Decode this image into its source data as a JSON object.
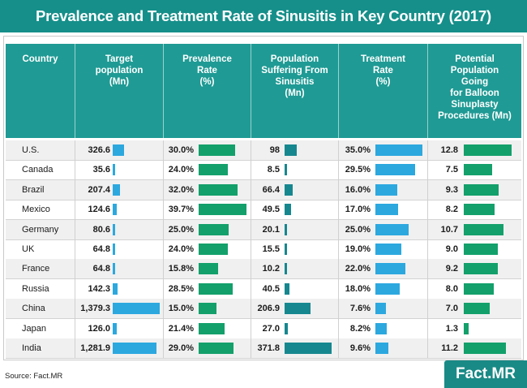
{
  "title": "Prevalence and Treatment Rate of Sinusitis in Key Country (2017)",
  "source": "Source: Fact.MR",
  "logo": "Fact.MR",
  "colors": {
    "header_bg": "#1f9a94",
    "title_bg": "#168f8a",
    "bar_blue": "#2ca8df",
    "bar_green": "#13a06b",
    "bar_teal": "#16878f"
  },
  "headers": {
    "country": "Country",
    "target": "Target\npopulation\n(Mn)",
    "prevalence": "Prevalence\nRate\n(%)",
    "suffering": "Population\nSuffering From\nSinusitis\n(Mn)",
    "treatment": "Treatment\nRate\n(%)",
    "balloon": "Potential\nPopulation\nGoing\nfor Balloon\nSinuplasty\nProcedures (Mn)"
  },
  "chart_data": {
    "type": "table",
    "columns": [
      "Country",
      "Target population (Mn)",
      "Prevalence Rate (%)",
      "Population Suffering From Sinusitis (Mn)",
      "Treatment Rate (%)",
      "Potential Population Going for Balloon Sinuplasty Procedures (Mn)"
    ],
    "rows": [
      {
        "country": "U.S.",
        "target": "326.6",
        "prevalence": "30.0%",
        "suffering": "98",
        "treatment": "35.0%",
        "balloon": "12.8"
      },
      {
        "country": "Canada",
        "target": "35.6",
        "prevalence": "24.0%",
        "suffering": "8.5",
        "treatment": "29.5%",
        "balloon": "7.5"
      },
      {
        "country": "Brazil",
        "target": "207.4",
        "prevalence": "32.0%",
        "suffering": "66.4",
        "treatment": "16.0%",
        "balloon": "9.3"
      },
      {
        "country": "Mexico",
        "target": "124.6",
        "prevalence": "39.7%",
        "suffering": "49.5",
        "treatment": "17.0%",
        "balloon": "8.2"
      },
      {
        "country": "Germany",
        "target": "80.6",
        "prevalence": "25.0%",
        "suffering": "20.1",
        "treatment": "25.0%",
        "balloon": "10.7"
      },
      {
        "country": "UK",
        "target": "64.8",
        "prevalence": "24.0%",
        "suffering": "15.5",
        "treatment": "19.0%",
        "balloon": "9.0"
      },
      {
        "country": "France",
        "target": "64.8",
        "prevalence": "15.8%",
        "suffering": "10.2",
        "treatment": "22.0%",
        "balloon": "9.2"
      },
      {
        "country": "Russia",
        "target": "142.3",
        "prevalence": "28.5%",
        "suffering": "40.5",
        "treatment": "18.0%",
        "balloon": "8.0"
      },
      {
        "country": "China",
        "target": "1,379.3",
        "prevalence": "15.0%",
        "suffering": "206.9",
        "treatment": "7.6%",
        "balloon": "7.0"
      },
      {
        "country": "Japan",
        "target": "126.0",
        "prevalence": "21.4%",
        "suffering": "27.0",
        "treatment": "8.2%",
        "balloon": "1.3"
      },
      {
        "country": "India",
        "target": "1,281.9",
        "prevalence": "29.0%",
        "suffering": "371.8",
        "treatment": "9.6%",
        "balloon": "11.2"
      }
    ]
  }
}
